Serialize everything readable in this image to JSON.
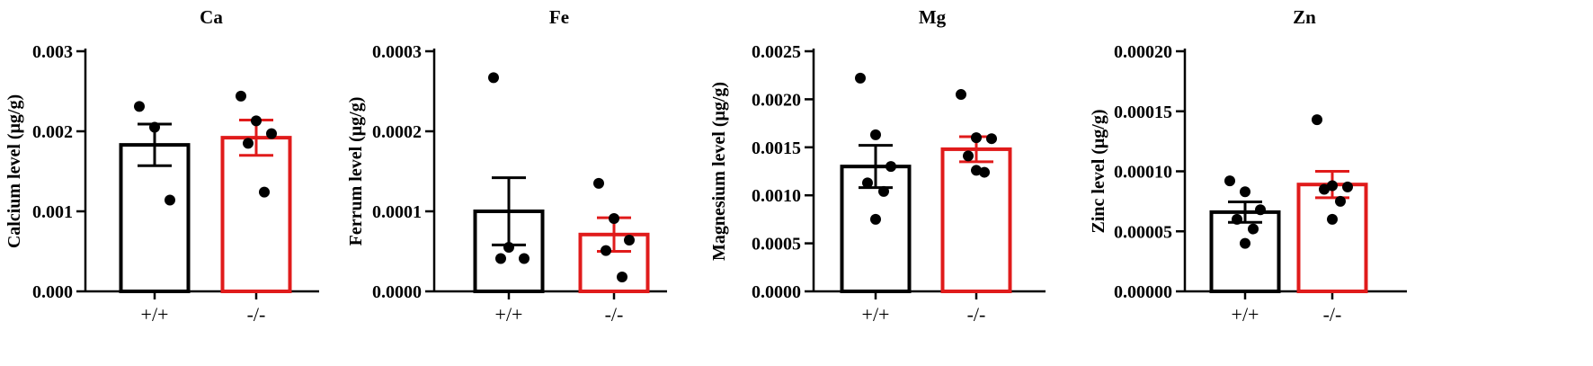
{
  "chart_data": [
    {
      "type": "bar",
      "title": "Ca",
      "ylabel": "Calcium level (μg/g)",
      "categories": [
        "+/+",
        "-/-"
      ],
      "ylim": [
        0,
        0.003
      ],
      "yticks": [
        "0.000",
        "0.001",
        "0.002",
        "0.003"
      ],
      "bar_colors": [
        "#000000",
        "#e01b1b"
      ],
      "series": [
        {
          "category": "+/+",
          "mean": 0.00183,
          "sem": 0.00026,
          "points": [
            0.00231,
            0.00205,
            0.00114
          ]
        },
        {
          "category": "-/-",
          "mean": 0.00192,
          "sem": 0.00022,
          "points": [
            0.00244,
            0.00213,
            0.00197,
            0.00185,
            0.00124
          ]
        }
      ]
    },
    {
      "type": "bar",
      "title": "Fe",
      "ylabel": "Ferrum level (μg/g)",
      "categories": [
        "+/+",
        "-/-"
      ],
      "ylim": [
        0,
        0.0003
      ],
      "yticks": [
        "0.0000",
        "0.0001",
        "0.0002",
        "0.0003"
      ],
      "bar_colors": [
        "#000000",
        "#e01b1b"
      ],
      "series": [
        {
          "category": "+/+",
          "mean": 0.0001,
          "sem": 4.2e-05,
          "points": [
            0.000267,
            5.5e-05,
            4.1e-05,
            4.1e-05
          ]
        },
        {
          "category": "-/-",
          "mean": 7.1e-05,
          "sem": 2.1e-05,
          "points": [
            0.000135,
            9.1e-05,
            6.4e-05,
            5.1e-05,
            1.8e-05
          ]
        }
      ]
    },
    {
      "type": "bar",
      "title": "Mg",
      "ylabel": "Magnesium level (μg/g)",
      "categories": [
        "+/+",
        "-/-"
      ],
      "ylim": [
        0,
        0.0025
      ],
      "yticks": [
        "0.0000",
        "0.0005",
        "0.0010",
        "0.0015",
        "0.0020",
        "0.0025"
      ],
      "bar_colors": [
        "#000000",
        "#e01b1b"
      ],
      "series": [
        {
          "category": "+/+",
          "mean": 0.0013,
          "sem": 0.00022,
          "points": [
            0.00222,
            0.00163,
            0.0013,
            0.00113,
            0.00104,
            0.00075
          ]
        },
        {
          "category": "-/-",
          "mean": 0.00148,
          "sem": 0.00013,
          "points": [
            0.00205,
            0.0016,
            0.00159,
            0.00141,
            0.00124,
            0.00126
          ]
        }
      ]
    },
    {
      "type": "bar",
      "title": "Zn",
      "ylabel": "Zinc level (μg/g)",
      "categories": [
        "+/+",
        "-/-"
      ],
      "ylim": [
        0,
        0.0002
      ],
      "yticks": [
        "0.00000",
        "0.00005",
        "0.00010",
        "0.00015",
        "0.00020"
      ],
      "bar_colors": [
        "#000000",
        "#e01b1b"
      ],
      "series": [
        {
          "category": "+/+",
          "mean": 6.6e-05,
          "sem": 8.5e-06,
          "points": [
            9.2e-05,
            8.3e-05,
            6.8e-05,
            6e-05,
            5.2e-05,
            4e-05
          ]
        },
        {
          "category": "-/-",
          "mean": 8.9e-05,
          "sem": 1.1e-05,
          "points": [
            0.000143,
            8.8e-05,
            8.7e-05,
            8.5e-05,
            7.5e-05,
            6e-05
          ]
        }
      ]
    }
  ]
}
